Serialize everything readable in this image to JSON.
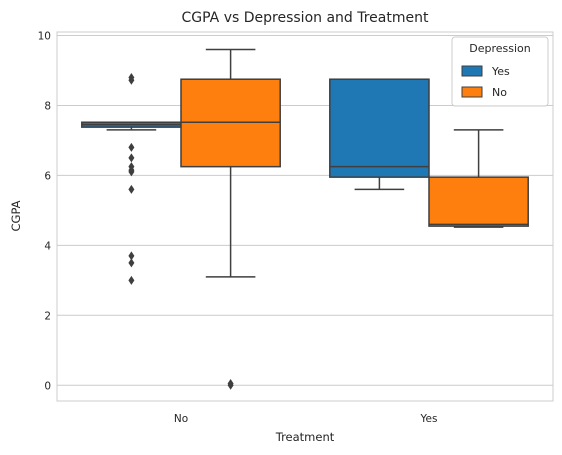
{
  "chart_data": {
    "type": "box",
    "title": "CGPA vs Depression and Treatment",
    "xlabel": "Treatment",
    "ylabel": "CGPA",
    "categories": [
      "No",
      "Yes"
    ],
    "ylim": [
      -0.45,
      10.1
    ],
    "yticks": [
      0,
      2,
      4,
      6,
      8,
      10
    ],
    "grid": "horizontal",
    "legend": {
      "title": "Depression",
      "placement": "top-right"
    },
    "series": [
      {
        "name": "Yes",
        "color": "#1f77b4",
        "boxes": [
          {
            "category": "No",
            "whisker_low": 7.3,
            "q1": 7.38,
            "median": 7.45,
            "q3": 7.52,
            "whisker_high": 7.52,
            "outliers": [
              8.8,
              8.72,
              6.8,
              6.5,
              6.25,
              6.15,
              6.1,
              5.6,
              3.7,
              3.5,
              3.0
            ]
          },
          {
            "category": "Yes",
            "whisker_low": 5.6,
            "q1": 5.95,
            "median": 6.25,
            "q3": 8.75,
            "whisker_high": 8.75,
            "outliers": []
          }
        ]
      },
      {
        "name": "No",
        "color": "#ff7f0e",
        "boxes": [
          {
            "category": "No",
            "whisker_low": 3.1,
            "q1": 6.25,
            "median": 7.52,
            "q3": 8.75,
            "whisker_high": 9.6,
            "outliers": [
              0.0,
              0.05
            ]
          },
          {
            "category": "Yes",
            "whisker_low": 4.52,
            "q1": 4.55,
            "median": 4.6,
            "q3": 5.95,
            "whisker_high": 7.3,
            "outliers": []
          }
        ]
      }
    ]
  }
}
